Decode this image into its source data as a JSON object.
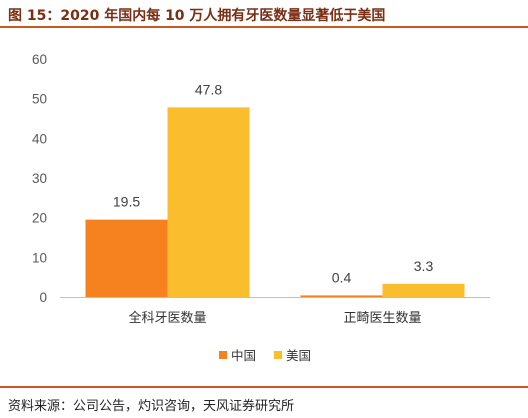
{
  "figure": {
    "title": "图 15：2020 年国内每 10 万人拥有牙医数量显著低于美国",
    "source": "资料来源：公司公告，灼识咨询，天风证券研究所"
  },
  "colors": {
    "accent_line": "#c8581d",
    "title_text": "#7a2e14",
    "axis_line": "#bfbfbf"
  },
  "chart_data": {
    "type": "bar",
    "title": "",
    "xlabel": "",
    "ylabel": "",
    "categories": [
      "全科牙医数量",
      "正畸医生数量"
    ],
    "series": [
      {
        "name": "中国",
        "values": [
          19.5,
          0.4
        ],
        "color": "#f5821f"
      },
      {
        "name": "美国",
        "values": [
          47.8,
          3.3
        ],
        "color": "#f9bd2e"
      }
    ],
    "ylim": [
      0,
      60
    ],
    "yticks": [
      0,
      10,
      20,
      30,
      40,
      50,
      60
    ],
    "grid": false,
    "legend_position": "bottom",
    "data_labels": true
  }
}
